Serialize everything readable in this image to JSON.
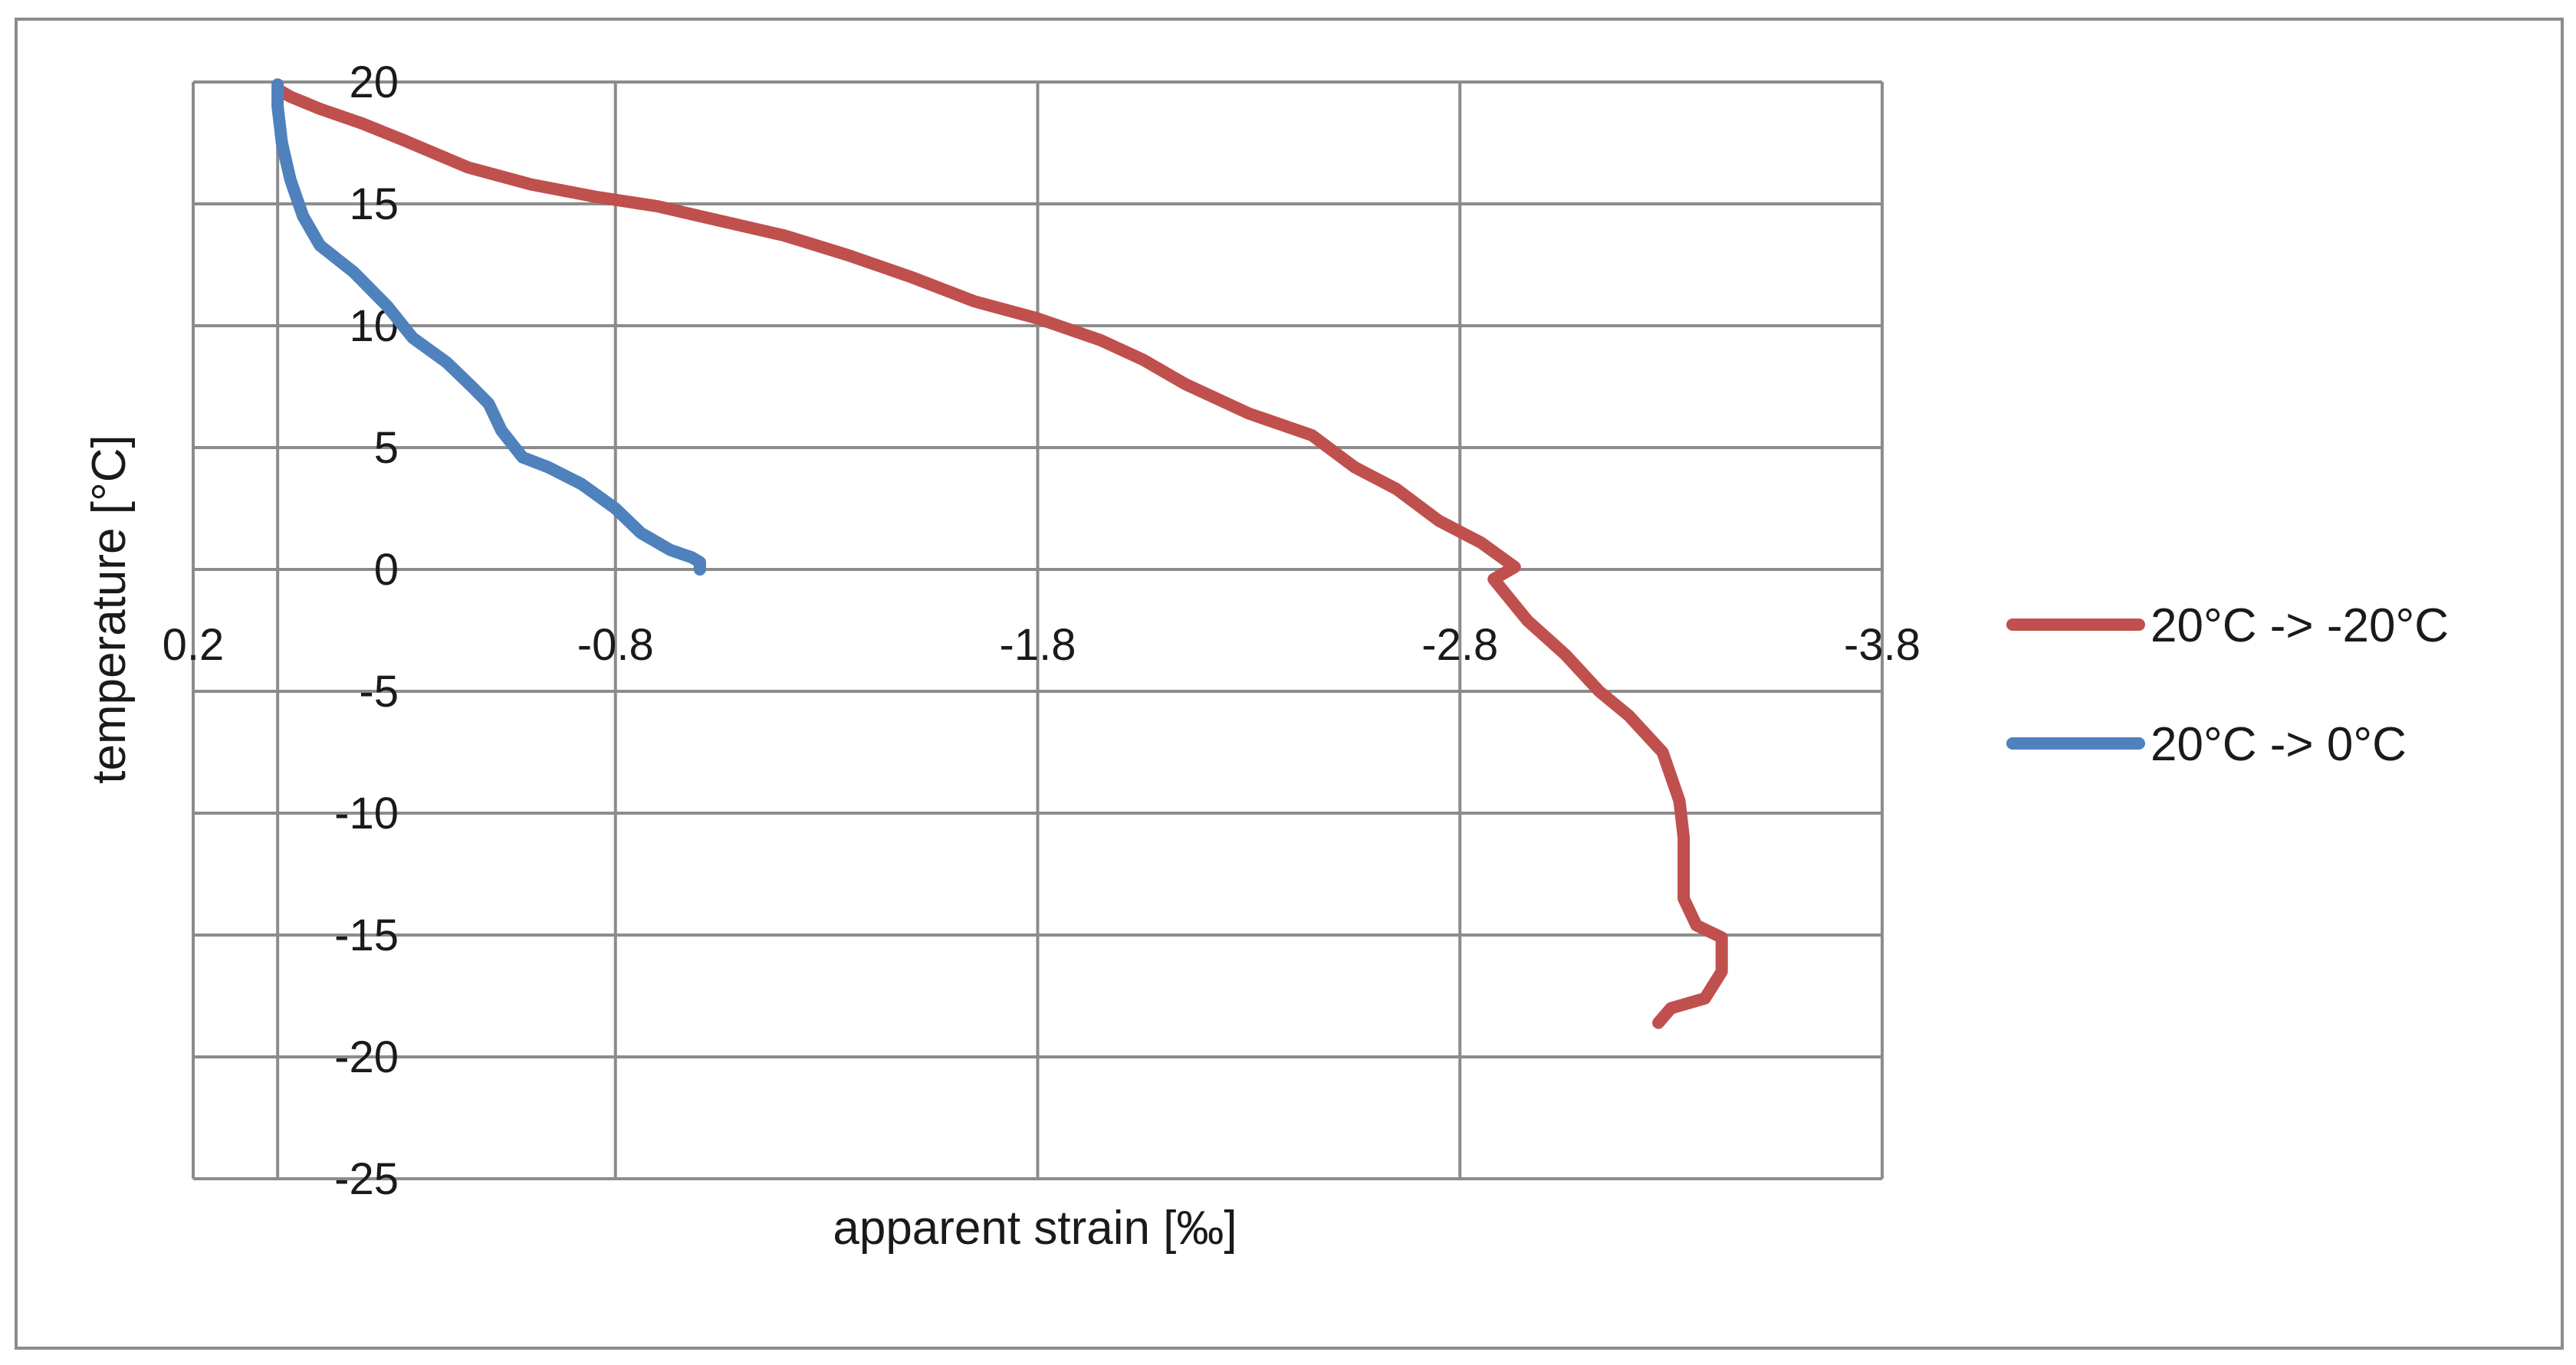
{
  "chart_data": {
    "type": "line",
    "title": "",
    "xlabel": "apparent strain [‰]",
    "ylabel": "temperature [°C]",
    "xlim": [
      0.2,
      -3.8
    ],
    "ylim": [
      -25,
      20
    ],
    "x_axis_reversed": true,
    "x_ticks": [
      "0.2",
      "-0.8",
      "-1.8",
      "-2.8",
      "-3.8"
    ],
    "y_ticks": [
      "20",
      "15",
      "10",
      "5",
      "0",
      "-5",
      "-10",
      "-15",
      "-20",
      "-25"
    ],
    "grid": true,
    "legend_position": "right",
    "series": [
      {
        "name": "20°C -> -20°C",
        "color": "#C0504D",
        "points": [
          [
            0.0,
            19.7
          ],
          [
            -0.03,
            19.4
          ],
          [
            -0.1,
            18.9
          ],
          [
            -0.2,
            18.3
          ],
          [
            -0.3,
            17.6
          ],
          [
            -0.45,
            16.5
          ],
          [
            -0.6,
            15.8
          ],
          [
            -0.75,
            15.3
          ],
          [
            -0.9,
            14.9
          ],
          [
            -1.05,
            14.3
          ],
          [
            -1.2,
            13.7
          ],
          [
            -1.35,
            12.9
          ],
          [
            -1.5,
            12.0
          ],
          [
            -1.65,
            11.0
          ],
          [
            -1.8,
            10.3
          ],
          [
            -1.95,
            9.4
          ],
          [
            -2.05,
            8.6
          ],
          [
            -2.15,
            7.6
          ],
          [
            -2.3,
            6.4
          ],
          [
            -2.45,
            5.5
          ],
          [
            -2.55,
            4.2
          ],
          [
            -2.65,
            3.3
          ],
          [
            -2.75,
            2.0
          ],
          [
            -2.85,
            1.1
          ],
          [
            -2.93,
            0.1
          ],
          [
            -2.88,
            -0.4
          ],
          [
            -2.96,
            -2.1
          ],
          [
            -3.05,
            -3.5
          ],
          [
            -3.13,
            -5.0
          ],
          [
            -3.2,
            -6.0
          ],
          [
            -3.28,
            -7.5
          ],
          [
            -3.32,
            -9.5
          ],
          [
            -3.33,
            -11.0
          ],
          [
            -3.33,
            -13.5
          ],
          [
            -3.36,
            -14.6
          ],
          [
            -3.42,
            -15.1
          ],
          [
            -3.42,
            -16.5
          ],
          [
            -3.38,
            -17.6
          ],
          [
            -3.3,
            -18.0
          ],
          [
            -3.27,
            -18.6
          ]
        ]
      },
      {
        "name": "20°C -> 0°C",
        "color": "#4F81BD",
        "points": [
          [
            0.0,
            19.9
          ],
          [
            0.0,
            19.0
          ],
          [
            -0.01,
            17.5
          ],
          [
            -0.03,
            16.0
          ],
          [
            -0.06,
            14.5
          ],
          [
            -0.1,
            13.3
          ],
          [
            -0.18,
            12.2
          ],
          [
            -0.26,
            10.8
          ],
          [
            -0.32,
            9.5
          ],
          [
            -0.4,
            8.5
          ],
          [
            -0.46,
            7.5
          ],
          [
            -0.5,
            6.8
          ],
          [
            -0.53,
            5.7
          ],
          [
            -0.58,
            4.6
          ],
          [
            -0.64,
            4.2
          ],
          [
            -0.72,
            3.5
          ],
          [
            -0.8,
            2.5
          ],
          [
            -0.86,
            1.5
          ],
          [
            -0.93,
            0.8
          ],
          [
            -0.98,
            0.5
          ],
          [
            -1.0,
            0.3
          ],
          [
            -1.0,
            0.0
          ]
        ]
      }
    ]
  }
}
